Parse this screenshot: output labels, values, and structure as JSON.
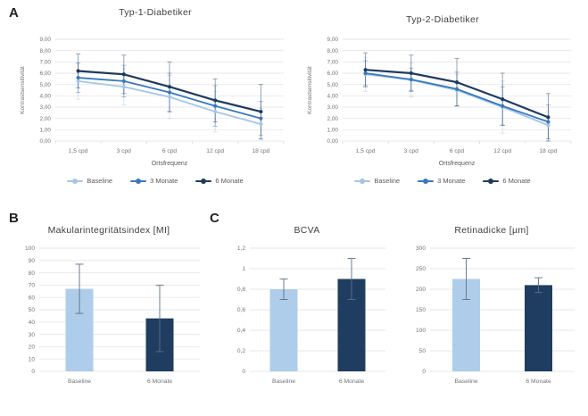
{
  "panels": {
    "a": "A",
    "b": "B",
    "c": "C"
  },
  "colors": {
    "series_baseline": "#A3C6E8",
    "series_3monate": "#3879BE",
    "series_6monate": "#1F3A5F",
    "bar_light": "#AECDEA",
    "bar_dark": "#1F3C61",
    "grid": "#e7e7e7",
    "axis_text": "#737373",
    "bar_error": "#5f6f82"
  },
  "chart_data": [
    {
      "type": "line",
      "id": "typ1",
      "title": "Typ-1-Diabetiker",
      "xlabel": "Ortsfrequenz",
      "ylabel": "Kontrastsensitivität",
      "categories": [
        "1,5 cpd",
        "3 cpd",
        "6 cpd",
        "12 cpd",
        "18 cpd"
      ],
      "ylim": [
        0,
        9
      ],
      "ytick_labels": [
        "0,00",
        "1,00",
        "2,00",
        "3,00",
        "4,00",
        "5,00",
        "6,00",
        "7,00",
        "8,00",
        "9,00"
      ],
      "grid": true,
      "legend_position": "bottom",
      "series": [
        {
          "name": "Baseline",
          "color": "#A3C6E8",
          "width": 1.8,
          "values": [
            5.3,
            4.8,
            3.9,
            2.6,
            1.5
          ],
          "errors": [
            1.6,
            1.6,
            1.9,
            1.8,
            1.4
          ]
        },
        {
          "name": "3 Monate",
          "color": "#3879BE",
          "width": 1.8,
          "values": [
            5.6,
            5.3,
            4.3,
            3.1,
            2.0
          ],
          "errors": [
            1.3,
            1.4,
            1.7,
            1.8,
            1.5
          ]
        },
        {
          "name": "6 Monate",
          "color": "#1F3A5F",
          "width": 2.2,
          "values": [
            6.2,
            5.9,
            4.8,
            3.6,
            2.6
          ],
          "errors": [
            1.5,
            1.7,
            2.2,
            1.9,
            2.4
          ]
        }
      ]
    },
    {
      "type": "line",
      "id": "typ2",
      "title": "Typ-2-Diabetiker",
      "xlabel": "Ortsfrequenz",
      "ylabel": "Kontrastsensitivität",
      "categories": [
        "1,5 cpd",
        "3 cpd",
        "6 cpd",
        "12 cpd",
        "18 cpd"
      ],
      "ylim": [
        0,
        9
      ],
      "ytick_labels": [
        "0,00",
        "1,00",
        "2,00",
        "3,00",
        "4,00",
        "5,00",
        "6,00",
        "7,00",
        "8,00",
        "9,00"
      ],
      "grid": true,
      "legend_position": "bottom",
      "series": [
        {
          "name": "Baseline",
          "color": "#A3C6E8",
          "width": 1.8,
          "values": [
            5.9,
            5.4,
            4.5,
            3.0,
            1.4
          ],
          "errors": [
            1.5,
            1.5,
            1.4,
            2.3,
            1.2
          ]
        },
        {
          "name": "3 Monate",
          "color": "#3879BE",
          "width": 1.8,
          "values": [
            6.0,
            5.45,
            4.6,
            3.1,
            1.7
          ],
          "errors": [
            1.1,
            1.0,
            1.5,
            1.7,
            1.5
          ]
        },
        {
          "name": "6 Monate",
          "color": "#1F3A5F",
          "width": 2.2,
          "values": [
            6.3,
            6.0,
            5.2,
            3.7,
            2.1
          ],
          "errors": [
            1.5,
            1.6,
            2.1,
            2.3,
            2.1
          ]
        }
      ]
    },
    {
      "type": "bar",
      "id": "mi",
      "title": "Makularintegritätsindex [MI]",
      "categories": [
        "Baseline",
        "6 Monate"
      ],
      "values": [
        67,
        43
      ],
      "errors": [
        20,
        27
      ],
      "bar_colors": [
        "#AECDEA",
        "#1F3C61"
      ],
      "ylim": [
        0,
        100
      ],
      "ytick_labels": [
        "0",
        "10",
        "20",
        "30",
        "40",
        "50",
        "60",
        "70",
        "80",
        "90",
        "100"
      ],
      "grid": true
    },
    {
      "type": "bar",
      "id": "bcva",
      "title": "BCVA",
      "categories": [
        "Baseline",
        "6 Monate"
      ],
      "values": [
        0.8,
        0.9
      ],
      "errors": [
        0.1,
        0.2
      ],
      "bar_colors": [
        "#AECDEA",
        "#1F3C61"
      ],
      "ylim": [
        0,
        1.2
      ],
      "ytick_labels": [
        "0",
        "0,2",
        "0,4",
        "0,6",
        "0,8",
        "1",
        "1,2"
      ],
      "grid": true
    },
    {
      "type": "bar",
      "id": "retina",
      "title": "Retinadicke [µm]",
      "categories": [
        "Baseline",
        "6 Monate"
      ],
      "values": [
        225,
        210
      ],
      "errors": [
        50,
        18
      ],
      "bar_colors": [
        "#AECDEA",
        "#1F3C61"
      ],
      "ylim": [
        0,
        300
      ],
      "ytick_labels": [
        "0",
        "50",
        "100",
        "150",
        "200",
        "250",
        "300"
      ],
      "grid": true
    }
  ]
}
